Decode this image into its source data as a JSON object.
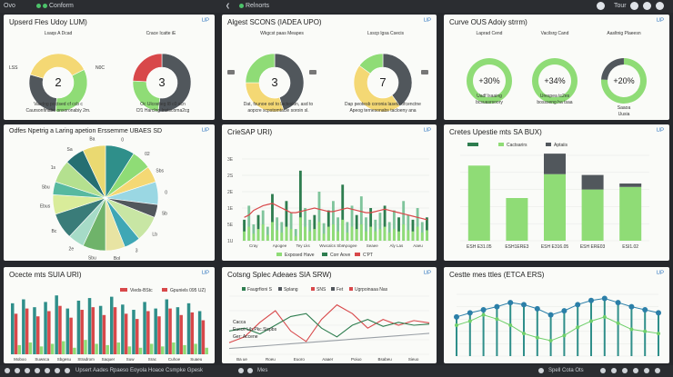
{
  "topbar": {
    "app_label": "Ovo",
    "status_label": "Conform",
    "center_label": "Relnorts",
    "right_label": "Tour"
  },
  "colors": {
    "yellow": "#f4d874",
    "green": "#8fdc76",
    "gray": "#51575c",
    "red": "#d8484a",
    "teal": "#2f8f8a",
    "darkgreen": "#2e7d4f"
  },
  "panel1": {
    "title": "Upserd Fles Udoy LUM)",
    "badge": "UP",
    "left": {
      "top_label": "Lsaqs A Dcad",
      "value": "2",
      "side_labels": [
        "LSS",
        "N0C"
      ],
      "caption1": "Vasrlng poctsed cf ccb c",
      "caption2": "Caursonfinabe onsoronabiy 2m."
    },
    "right": {
      "top_label": "Crace Icatte iE",
      "value": "3",
      "caption1": "Oc Ulcostieg l8 c0 acn",
      "caption2": "Cf1 Harclng Instscoma2cg"
    },
    "chart_data": [
      {
        "type": "pie",
        "title": "Lsaqs A Dcad",
        "slices": [
          {
            "label": "Green",
            "value": 34
          },
          {
            "label": "Gray",
            "value": 28
          },
          {
            "label": "Yellow",
            "value": 38
          }
        ]
      },
      {
        "type": "pie",
        "title": "Crace Icatte iE",
        "slices": [
          {
            "label": "Gray",
            "value": 52
          },
          {
            "label": "Green",
            "value": 24
          },
          {
            "label": "Red",
            "value": 24
          }
        ]
      }
    ]
  },
  "panel2": {
    "title": "Algest SCONS (IADEA UPO)",
    "badge": "UP",
    "left": {
      "top_label": "Wkgcst paas Meapes",
      "value": "3",
      "caption1": "Dat, fsunoe ool to lacteskin, asd to",
      "caption2": "aopcre scpstomtacle soroin sl."
    },
    "right": {
      "top_label": "Lsscp lgsa Csecis",
      "value": "7",
      "caption1": "Dap peotesb coronia laseta ofcenctne",
      "caption2": "Apeog ternesonabs tacloeny ana"
    },
    "chart_data": [
      {
        "type": "pie",
        "title": "Wkgcst paas Meapes",
        "slices": [
          {
            "label": "Gray",
            "value": 45
          },
          {
            "label": "Yellow",
            "value": 30
          },
          {
            "label": "Green",
            "value": 25
          }
        ]
      },
      {
        "type": "pie",
        "title": "Lsscp lgsa Csecis",
        "slices": [
          {
            "label": "Gray",
            "value": 40
          },
          {
            "label": "Yellow",
            "value": 45
          },
          {
            "label": "Green",
            "value": 15
          }
        ]
      }
    ]
  },
  "panel3": {
    "title": "Curve OUS Adoiy strrm)",
    "badge": "UP",
    "rings": [
      {
        "label": "Laprad Cend",
        "value": "+30%",
        "caption1": "Uadf lsaaing",
        "caption2": "bcsuasrsoory"
      },
      {
        "label": "Vacilsrg Cand",
        "value": "+34%",
        "caption1": "Urespea tc2es",
        "caption2": "bossseng ha tsaa"
      },
      {
        "label": "Aasltnig Plaeesn",
        "value": "+20%",
        "caption1": "Saaoa",
        "caption2": "Uusia"
      }
    ],
    "chart_data": {
      "type": "pie",
      "series": [
        {
          "name": "Laprad Cend",
          "values": [
            100
          ]
        },
        {
          "name": "Vacilsrg Cand",
          "values": [
            100
          ]
        },
        {
          "name": "Aasltnig Plaeesn",
          "values": [
            76,
            24
          ]
        }
      ]
    }
  },
  "panel4": {
    "title": "Odfes Npetrig a Laring apetion Erssemme UBAES SD",
    "badge": "UP",
    "chart_data": {
      "type": "pie",
      "labels": [
        "0",
        "02",
        "Sbs",
        "0",
        "Sb",
        "Lb",
        "3",
        "Bol",
        "Sbu",
        "2e",
        "Bc",
        "Ebus",
        "Sbu",
        "1s",
        "Sa",
        "Ba"
      ],
      "values": [
        9,
        6,
        5,
        7,
        4,
        8,
        5,
        6,
        7,
        5,
        8,
        6,
        4,
        7,
        6,
        7
      ]
    }
  },
  "panel5": {
    "title": "CrieSAP URI)",
    "badge": "UP",
    "yticks": [
      "3E",
      "2S",
      "2E",
      "1E",
      "5E",
      "1U"
    ],
    "xlabels": [
      "Cray",
      "Apogee",
      "Tey Lks",
      "Wwcalcs Sbs",
      "Apogee",
      "Seaee",
      "Aly Las",
      "Aaeu"
    ],
    "legend": [
      "Exposed Have",
      "Corr Aove",
      "C'PT"
    ],
    "chart_data": {
      "type": "bar",
      "categories": [
        "1",
        "2",
        "3",
        "4",
        "5",
        "6",
        "7",
        "8",
        "9",
        "10",
        "11",
        "12",
        "13",
        "14",
        "15",
        "16",
        "17",
        "18",
        "19",
        "20",
        "21",
        "22",
        "23",
        "24",
        "25",
        "26",
        "27",
        "28",
        "29",
        "30",
        "31",
        "32",
        "33",
        "34",
        "35",
        "36",
        "37",
        "38",
        "39",
        "40"
      ],
      "series": [
        {
          "name": "Exposed Have",
          "values": [
            18,
            30,
            14,
            22,
            26,
            12,
            40,
            20,
            16,
            34,
            24,
            10,
            60,
            28,
            18,
            22,
            42,
            15,
            26,
            34,
            20,
            48,
            16,
            30,
            22,
            38,
            20,
            28,
            18,
            24,
            30,
            16,
            26,
            20,
            34,
            22,
            18,
            28,
            16,
            20
          ]
        },
        {
          "name": "Corr Aove",
          "values": [
            8,
            12,
            6,
            10,
            14,
            5,
            16,
            9,
            7,
            12,
            10,
            4,
            20,
            12,
            8,
            10,
            16,
            6,
            12,
            14,
            8,
            18,
            7,
            12,
            10,
            14,
            8,
            12,
            8,
            10,
            12,
            7,
            10,
            8,
            14,
            9,
            8,
            12,
            7,
            9
          ]
        },
        {
          "name": "C'PT",
          "values": [
            20,
            22,
            26,
            28,
            30,
            31,
            32,
            30,
            28,
            26,
            24,
            24,
            25,
            26,
            27,
            28,
            27,
            26,
            25,
            25,
            26,
            27,
            28,
            27,
            26,
            25,
            24,
            24,
            25,
            26,
            27,
            26,
            25,
            24,
            23,
            22,
            21,
            20,
            19,
            18
          ]
        }
      ]
    }
  },
  "panel6": {
    "title": "Cretes Upestie mts SA BUX)",
    "badge": "UP",
    "legend": [
      "",
      "Cactsarirs",
      "Aptaiis"
    ],
    "xlabels": [
      "ESH E31.05",
      "ESH1ERE3",
      "ESH E316.05",
      "ESH ERE03",
      "ESI1.02"
    ],
    "chart_data": {
      "type": "bar",
      "categories": [
        "ESH E31.05",
        "ESH1ERE3",
        "ESH E316.05",
        "ESH ERE03",
        "ESI1.02"
      ],
      "series": [
        {
          "name": "Cactsarirs",
          "values": [
            88,
            50,
            78,
            60,
            63
          ]
        },
        {
          "name": "Aptaiis",
          "values": [
            0,
            0,
            24,
            17,
            4
          ]
        }
      ]
    }
  },
  "panel7": {
    "title": "Ocecte mts SUIA URI)",
    "badge": "UP",
    "legend": [
      "Vieds-BStc",
      "Gpuniels 095 UZ)"
    ],
    "xlabels": [
      "Moboo",
      "Suwsca",
      "Sbgesu",
      "Stradrom",
      "Saquer",
      "Suw",
      "Srac",
      "Cuhoe",
      "Suaeu"
    ],
    "chart_data": {
      "type": "bar",
      "categories": [
        "1",
        "2",
        "3",
        "4",
        "5",
        "6",
        "7",
        "8",
        "9",
        "10",
        "11",
        "12",
        "13",
        "14",
        "15",
        "16",
        "17",
        "18"
      ],
      "series": [
        {
          "name": "Teal",
          "values": [
            78,
            84,
            72,
            80,
            90,
            70,
            82,
            86,
            74,
            88,
            76,
            68,
            80,
            70,
            84,
            72,
            78,
            66
          ]
        },
        {
          "name": "Red",
          "values": [
            62,
            70,
            58,
            66,
            74,
            56,
            68,
            72,
            60,
            72,
            62,
            54,
            66,
            58,
            70,
            60,
            64,
            52
          ]
        },
        {
          "name": "Green",
          "values": [
            14,
            18,
            12,
            16,
            20,
            10,
            22,
            16,
            14,
            18,
            12,
            10,
            16,
            12,
            18,
            14,
            16,
            10
          ]
        }
      ]
    }
  },
  "panel8": {
    "title": "Cotsng Splec Adeaes SIA SRW)",
    "badge": "UP",
    "legend": [
      "Faugrfioni S",
      "Splang",
      "SNS",
      "Fet",
      "Ugrpoinaaa Nas"
    ],
    "leftnotes": [
      "Cacca",
      "Eucce Lih.Pkc.Sicpbs",
      "Ger: Accene"
    ],
    "xlabels": [
      "Ba ue",
      "Roeu",
      "Euoro",
      "Aaaer",
      "Poiuo",
      "Bsabeu",
      "Sieuo"
    ],
    "chart_data": {
      "type": "line",
      "x": [
        1,
        2,
        3,
        4,
        5,
        6,
        7,
        8,
        9,
        10,
        11,
        12,
        13,
        14
      ],
      "series": [
        {
          "name": "Red",
          "values": [
            20,
            30,
            55,
            75,
            40,
            22,
            60,
            85,
            70,
            45,
            60,
            50,
            58,
            54
          ]
        },
        {
          "name": "Green",
          "values": [
            40,
            45,
            35,
            50,
            65,
            70,
            45,
            30,
            50,
            60,
            48,
            55,
            50,
            52
          ]
        },
        {
          "name": "Gray",
          "values": [
            10,
            12,
            14,
            16,
            18,
            20,
            22,
            24,
            26,
            28,
            30,
            32,
            34,
            36
          ]
        }
      ]
    }
  },
  "panel9": {
    "title": "Cestte mes ttles (ETCA ERS)",
    "badge": "UP",
    "chart_data": {
      "type": "line",
      "x": [
        1,
        2,
        3,
        4,
        5,
        6,
        7,
        8,
        9,
        10,
        11,
        12,
        13,
        14,
        15,
        16
      ],
      "series": [
        {
          "name": "Blue",
          "values": [
            38,
            42,
            45,
            48,
            52,
            50,
            46,
            40,
            44,
            50,
            54,
            56,
            52,
            48,
            45,
            42
          ]
        },
        {
          "name": "Green",
          "values": [
            30,
            34,
            40,
            36,
            30,
            22,
            18,
            15,
            20,
            28,
            34,
            38,
            32,
            26,
            24,
            22
          ]
        }
      ]
    }
  },
  "bottombar": {
    "left_label": "Upsert Aades Rpaeso",
    "mid_label": "Eoyola Hoace Csmpke Gpesk",
    "center_label": "Mes",
    "right_label": "Spell Cota Ots"
  }
}
